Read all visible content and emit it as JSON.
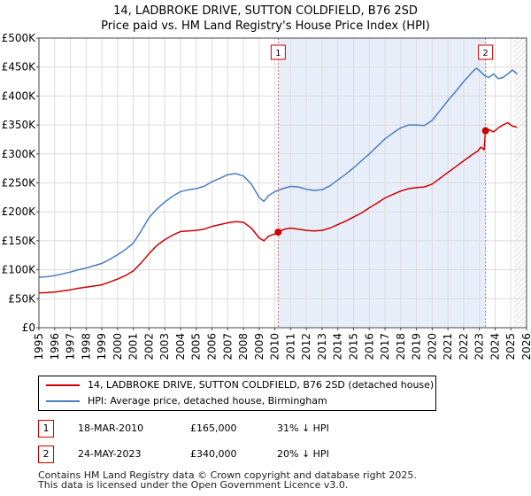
{
  "chart_data": {
    "type": "line",
    "title": "14, LADBROKE DRIVE, SUTTON COLDFIELD, B76 2SD",
    "subtitle": "Price paid vs. HM Land Registry's House Price Index (HPI)",
    "xlabel": "",
    "ylabel": "",
    "xlim": [
      1995,
      2026
    ],
    "ylim": [
      0,
      500000
    ],
    "y_ticks": [
      0,
      50000,
      100000,
      150000,
      200000,
      250000,
      300000,
      350000,
      400000,
      450000,
      500000
    ],
    "y_tick_labels": [
      "£0",
      "£50K",
      "£100K",
      "£150K",
      "£200K",
      "£250K",
      "£300K",
      "£350K",
      "£400K",
      "£450K",
      "£500K"
    ],
    "x_ticks": [
      1995,
      1996,
      1997,
      1998,
      1999,
      2000,
      2001,
      2002,
      2003,
      2004,
      2005,
      2006,
      2007,
      2008,
      2009,
      2010,
      2011,
      2012,
      2013,
      2014,
      2015,
      2016,
      2017,
      2018,
      2019,
      2020,
      2021,
      2022,
      2023,
      2024,
      2025,
      2026
    ],
    "x_tick_labels": [
      "1995",
      "1996",
      "1997",
      "1998",
      "1999",
      "2000",
      "2001",
      "2002",
      "2003",
      "2004",
      "2005",
      "2006",
      "2007",
      "2008",
      "2009",
      "2010",
      "2011",
      "2012",
      "2013",
      "2014",
      "2015",
      "2016",
      "2017",
      "2018",
      "2019",
      "2020",
      "2021",
      "2022",
      "2023",
      "2024",
      "2025",
      "2026"
    ],
    "grid": true,
    "shaded_range": [
      2010.21,
      2023.39
    ],
    "hatched_from": 2025.2,
    "series": [
      {
        "name": "14, LADBROKE DRIVE, SUTTON COLDFIELD, B76 2SD (detached house)",
        "color": "#cc0000",
        "x": [
          1995.0,
          1995.5,
          1996.0,
          1996.5,
          1997.0,
          1997.5,
          1998.0,
          1998.5,
          1999.0,
          1999.5,
          2000.0,
          2000.5,
          2001.0,
          2001.5,
          2002.0,
          2002.5,
          2003.0,
          2003.5,
          2004.0,
          2004.5,
          2005.0,
          2005.5,
          2006.0,
          2006.5,
          2007.0,
          2007.5,
          2008.0,
          2008.5,
          2009.0,
          2009.3,
          2009.6,
          2010.0,
          2010.21,
          2010.6,
          2011.0,
          2011.5,
          2012.0,
          2012.5,
          2013.0,
          2013.5,
          2014.0,
          2014.5,
          2015.0,
          2015.5,
          2016.0,
          2016.5,
          2017.0,
          2017.5,
          2018.0,
          2018.5,
          2019.0,
          2019.5,
          2020.0,
          2020.5,
          2021.0,
          2021.5,
          2022.0,
          2022.5,
          2022.9,
          2023.1,
          2023.3,
          2023.39,
          2023.6,
          2023.9,
          2024.2,
          2024.5,
          2024.8,
          2025.1,
          2025.4
        ],
        "values": [
          60000,
          60500,
          61500,
          63500,
          65500,
          68000,
          70000,
          72000,
          74000,
          79000,
          84000,
          90000,
          98000,
          112000,
          128000,
          142000,
          152000,
          160000,
          166000,
          167000,
          168000,
          170000,
          175000,
          178000,
          181000,
          183000,
          182000,
          172000,
          155000,
          150000,
          158000,
          162000,
          165000,
          170000,
          172000,
          170000,
          168000,
          167000,
          168000,
          172000,
          178000,
          184000,
          191000,
          198000,
          207000,
          215000,
          224000,
          230000,
          236000,
          240000,
          242000,
          243000,
          248000,
          258000,
          268000,
          278000,
          288000,
          298000,
          305000,
          312000,
          307000,
          340000,
          342000,
          338000,
          345000,
          350000,
          354000,
          348000,
          346000
        ]
      },
      {
        "name": "HPI: Average price, detached house, Birmingham",
        "color": "#4a7ebf",
        "x": [
          1995.0,
          1995.5,
          1996.0,
          1996.5,
          1997.0,
          1997.5,
          1998.0,
          1998.5,
          1999.0,
          1999.5,
          2000.0,
          2000.5,
          2001.0,
          2001.5,
          2002.0,
          2002.5,
          2003.0,
          2003.5,
          2004.0,
          2004.5,
          2005.0,
          2005.5,
          2006.0,
          2006.5,
          2007.0,
          2007.5,
          2008.0,
          2008.5,
          2009.0,
          2009.3,
          2009.6,
          2010.0,
          2010.5,
          2011.0,
          2011.5,
          2012.0,
          2012.5,
          2013.0,
          2013.5,
          2014.0,
          2014.5,
          2015.0,
          2015.5,
          2016.0,
          2016.5,
          2017.0,
          2017.5,
          2018.0,
          2018.5,
          2019.0,
          2019.5,
          2020.0,
          2020.5,
          2021.0,
          2021.5,
          2022.0,
          2022.5,
          2022.8,
          2023.0,
          2023.3,
          2023.6,
          2023.9,
          2024.2,
          2024.5,
          2024.8,
          2025.1,
          2025.4
        ],
        "values": [
          87000,
          88000,
          90000,
          93000,
          96000,
          100000,
          103000,
          107000,
          111000,
          118000,
          126000,
          135000,
          146000,
          167000,
          190000,
          205000,
          217000,
          227000,
          235000,
          238000,
          240000,
          244000,
          252000,
          258000,
          264000,
          266000,
          262000,
          248000,
          225000,
          218000,
          228000,
          235000,
          240000,
          244000,
          243000,
          239000,
          237000,
          238000,
          245000,
          255000,
          265000,
          276000,
          288000,
          300000,
          313000,
          326000,
          336000,
          345000,
          350000,
          350000,
          349000,
          358000,
          375000,
          392000,
          408000,
          425000,
          440000,
          448000,
          444000,
          436000,
          432000,
          438000,
          430000,
          432000,
          438000,
          445000,
          438000
        ]
      }
    ],
    "annotations": [
      {
        "label": "1",
        "x": 2010.21,
        "value": 165000
      },
      {
        "label": "2",
        "x": 2023.39,
        "value": 340000
      }
    ]
  },
  "legend": {
    "entries": [
      {
        "label": "14, LADBROKE DRIVE, SUTTON COLDFIELD, B76 2SD (detached house)",
        "color": "#cc0000"
      },
      {
        "label": "HPI: Average price, detached house, Birmingham",
        "color": "#4a7ebf"
      }
    ]
  },
  "transactions": [
    {
      "num": "1",
      "date": "18-MAR-2010",
      "price": "£165,000",
      "hpi": "31% ↓ HPI"
    },
    {
      "num": "2",
      "date": "24-MAY-2023",
      "price": "£340,000",
      "hpi": "20% ↓ HPI"
    }
  ],
  "footer": {
    "line1": "Contains HM Land Registry data © Crown copyright and database right 2025.",
    "line2": "This data is licensed under the Open Government Licence v3.0."
  }
}
